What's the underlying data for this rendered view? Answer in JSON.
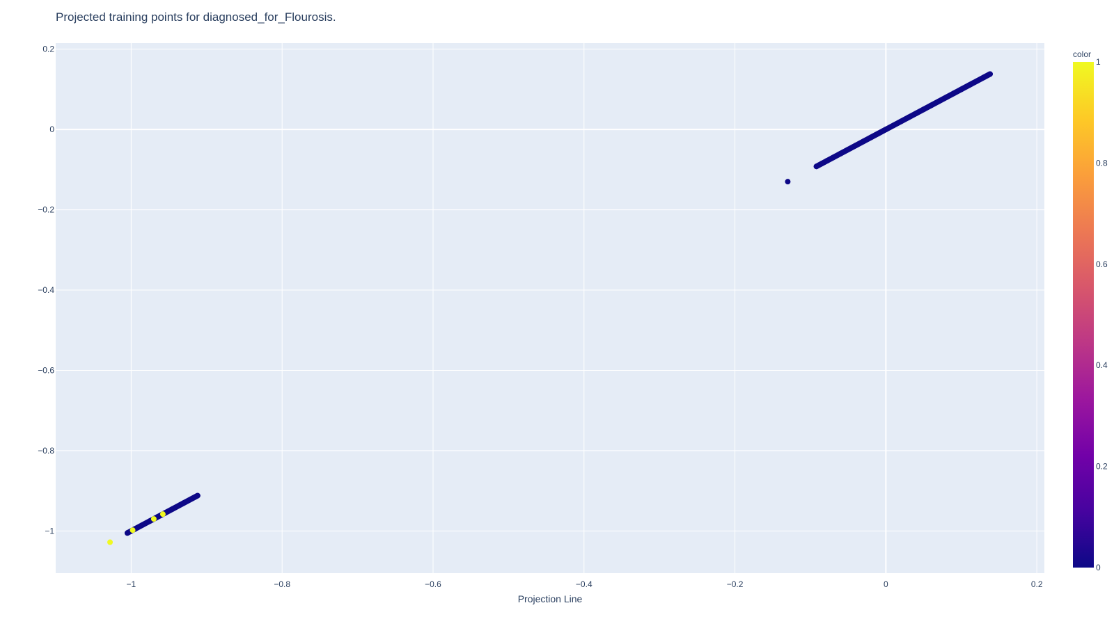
{
  "chart_data": {
    "type": "scatter",
    "title": "Projected training points for diagnosed_for_Flourosis.",
    "xlabel": "Projection Line",
    "ylabel": "",
    "xlim": [
      -1.1,
      0.21
    ],
    "ylim": [
      -1.105,
      0.215
    ],
    "x_ticks": [
      -1,
      -0.8,
      -0.6,
      -0.4,
      -0.2,
      0,
      0.2
    ],
    "x_tick_labels": [
      "−1",
      "−0.8",
      "−0.6",
      "−0.4",
      "−0.2",
      "0",
      "0.2"
    ],
    "y_ticks": [
      0.2,
      0,
      -0.2,
      -0.4,
      -0.6,
      -0.8,
      -1
    ],
    "y_tick_labels": [
      "0.2",
      "0",
      "−0.2",
      "−0.4",
      "−0.6",
      "−0.8",
      "−1"
    ],
    "grid": true,
    "colorbar": {
      "title": "color",
      "range": [
        0,
        1
      ],
      "ticks": [
        0,
        0.2,
        0.4,
        0.6,
        0.8,
        1
      ],
      "tick_labels": [
        "0",
        "0.2",
        "0.4",
        "0.6",
        "0.8",
        "1"
      ],
      "colorscale": [
        "#0d0887",
        "#46039f",
        "#7201a8",
        "#9c179e",
        "#bd3786",
        "#d8576b",
        "#ed7953",
        "#fb9f3a",
        "#fdca26",
        "#f0f921"
      ]
    },
    "colors": {
      "plot_bg": "#e5ecf6",
      "grid": "#ffffff",
      "text": "#2a3f5f"
    },
    "series": [
      {
        "x": [
          0.138,
          0.13,
          0.12,
          0.11,
          0.1,
          0.09,
          0.08,
          0.07,
          0.06,
          0.05,
          0.04,
          0.03,
          0.02,
          0.01,
          0.0,
          -0.01,
          -0.02,
          -0.03,
          -0.04,
          -0.05,
          -0.06,
          -0.07,
          -0.078,
          -0.085,
          -0.092,
          -0.13,
          -0.912,
          -0.93,
          -0.945,
          -0.955,
          -0.965,
          -0.975,
          -0.985,
          -0.995,
          -1.005
        ],
        "y": [
          0.138,
          0.13,
          0.12,
          0.11,
          0.1,
          0.09,
          0.08,
          0.07,
          0.06,
          0.05,
          0.04,
          0.03,
          0.02,
          0.01,
          0.0,
          -0.01,
          -0.02,
          -0.03,
          -0.04,
          -0.05,
          -0.06,
          -0.07,
          -0.078,
          -0.085,
          -0.092,
          -0.13,
          -0.912,
          -0.93,
          -0.945,
          -0.955,
          -0.965,
          -0.975,
          -0.985,
          -0.995,
          -1.005
        ],
        "color": [
          0,
          0,
          0,
          0,
          0,
          0,
          0,
          0,
          0,
          0,
          0,
          0,
          0,
          0,
          0,
          0,
          0,
          0,
          0,
          0,
          0,
          0,
          0,
          0,
          0,
          0,
          0,
          0,
          0,
          0,
          0,
          0,
          0,
          0,
          0
        ]
      },
      {
        "x": [
          -0.958,
          -0.97,
          -0.998,
          -1.028
        ],
        "y": [
          -0.958,
          -0.97,
          -0.998,
          -1.028
        ],
        "color": [
          1,
          1,
          1,
          1
        ]
      }
    ]
  }
}
